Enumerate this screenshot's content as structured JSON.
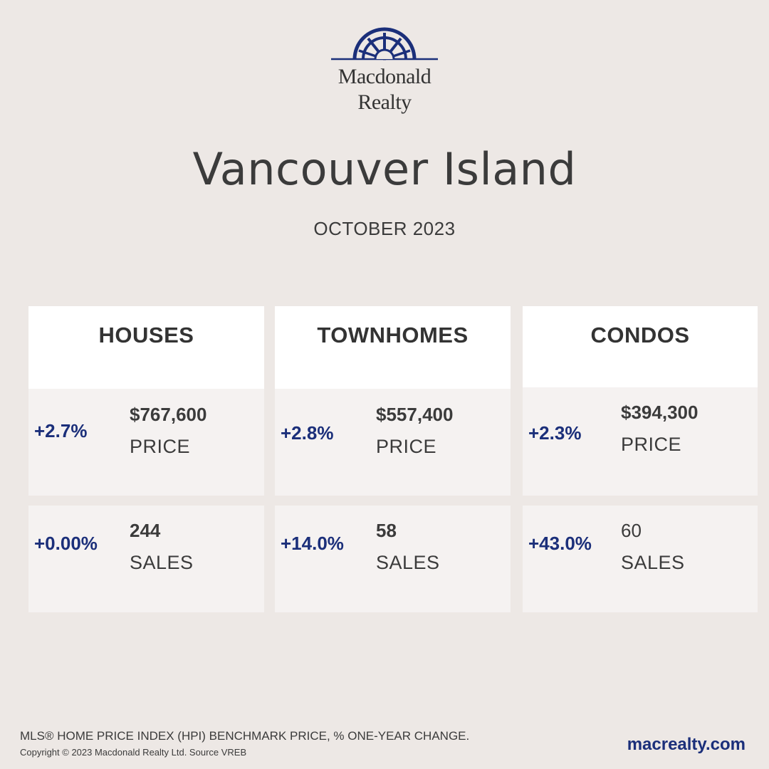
{
  "brand": {
    "line1": "Macdonald",
    "line2": "Realty",
    "color": "#1b2f7a",
    "logo_icon": "sunburst-arch-icon"
  },
  "header": {
    "title": "Vancouver Island",
    "subtitle": "OCTOBER 2023"
  },
  "columns": [
    {
      "heading": "HOUSES",
      "price": {
        "change": "+2.7%",
        "value": "$767,600",
        "label": "PRICE"
      },
      "sales": {
        "change": "+0.00%",
        "value": "244",
        "label": "SALES"
      }
    },
    {
      "heading": "TOWNHOMES",
      "price": {
        "change": "+2.8%",
        "value": "$557,400",
        "label": "PRICE"
      },
      "sales": {
        "change": "+14.0%",
        "value": "58",
        "label": "SALES"
      }
    },
    {
      "heading": "CONDOS",
      "price": {
        "change": "+2.3%",
        "value": "$394,300",
        "label": "PRICE"
      },
      "sales": {
        "change": "+43.0%",
        "value": "60",
        "label": "SALES"
      }
    }
  ],
  "footer": {
    "note": "MLS® HOME PRICE INDEX (HPI) BENCHMARK PRICE, % ONE-YEAR CHANGE.",
    "copyright": "Copyright © 2023 Macdonald Realty Ltd. Source VREB",
    "website": "macrealty.com"
  },
  "colors": {
    "background": "#ede8e5",
    "header_card": "#ffffff",
    "stat_card": "#f5f2f1",
    "accent": "#1b2f7a",
    "text": "#3b3b3b"
  }
}
